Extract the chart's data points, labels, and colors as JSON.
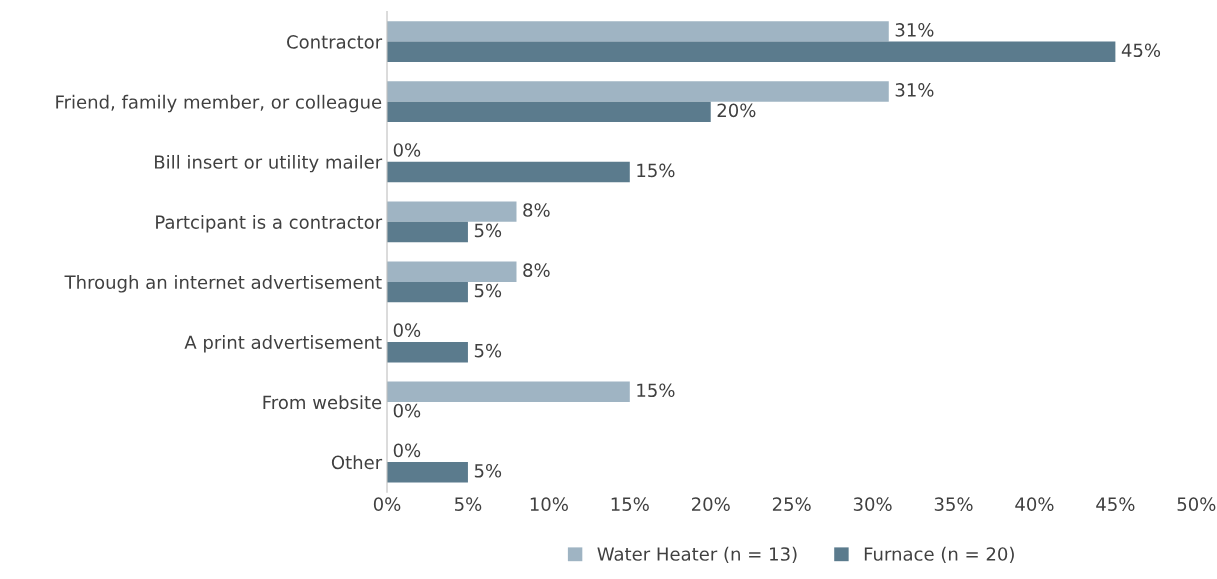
{
  "chart_data": {
    "type": "bar",
    "orientation": "horizontal",
    "categories": [
      "Contractor",
      "Friend, family member, or colleague",
      "Bill insert or utility mailer",
      "Partcipant is a contractor",
      "Through an internet advertisement",
      "A print advertisement",
      "From website",
      "Other"
    ],
    "series": [
      {
        "name": "Water Heater (n = 13)",
        "color": "#9fb4c3",
        "values": [
          31,
          31,
          0,
          8,
          8,
          0,
          15,
          0
        ],
        "value_labels": [
          "31%",
          "31%",
          "0%",
          "8%",
          "8%",
          "0%",
          "15%",
          "0%"
        ]
      },
      {
        "name": "Furnace (n = 20)",
        "color": "#5b7b8d",
        "values": [
          45,
          20,
          15,
          5,
          5,
          5,
          0,
          5
        ],
        "value_labels": [
          "45%",
          "20%",
          "15%",
          "5%",
          "5%",
          "5%",
          "0%",
          "5%"
        ]
      }
    ],
    "xlim": [
      0,
      50
    ],
    "xticks": [
      {
        "value": 0,
        "label": "0%"
      },
      {
        "value": 5,
        "label": "5%"
      },
      {
        "value": 10,
        "label": "10%"
      },
      {
        "value": 15,
        "label": "15%"
      },
      {
        "value": 20,
        "label": "20%"
      },
      {
        "value": 25,
        "label": "25%"
      },
      {
        "value": 30,
        "label": "30%"
      },
      {
        "value": 35,
        "label": "35%"
      },
      {
        "value": 40,
        "label": "40%"
      },
      {
        "value": 45,
        "label": "45%"
      },
      {
        "value": 50,
        "label": "50%"
      }
    ],
    "grid": false,
    "legend": "bottom"
  }
}
